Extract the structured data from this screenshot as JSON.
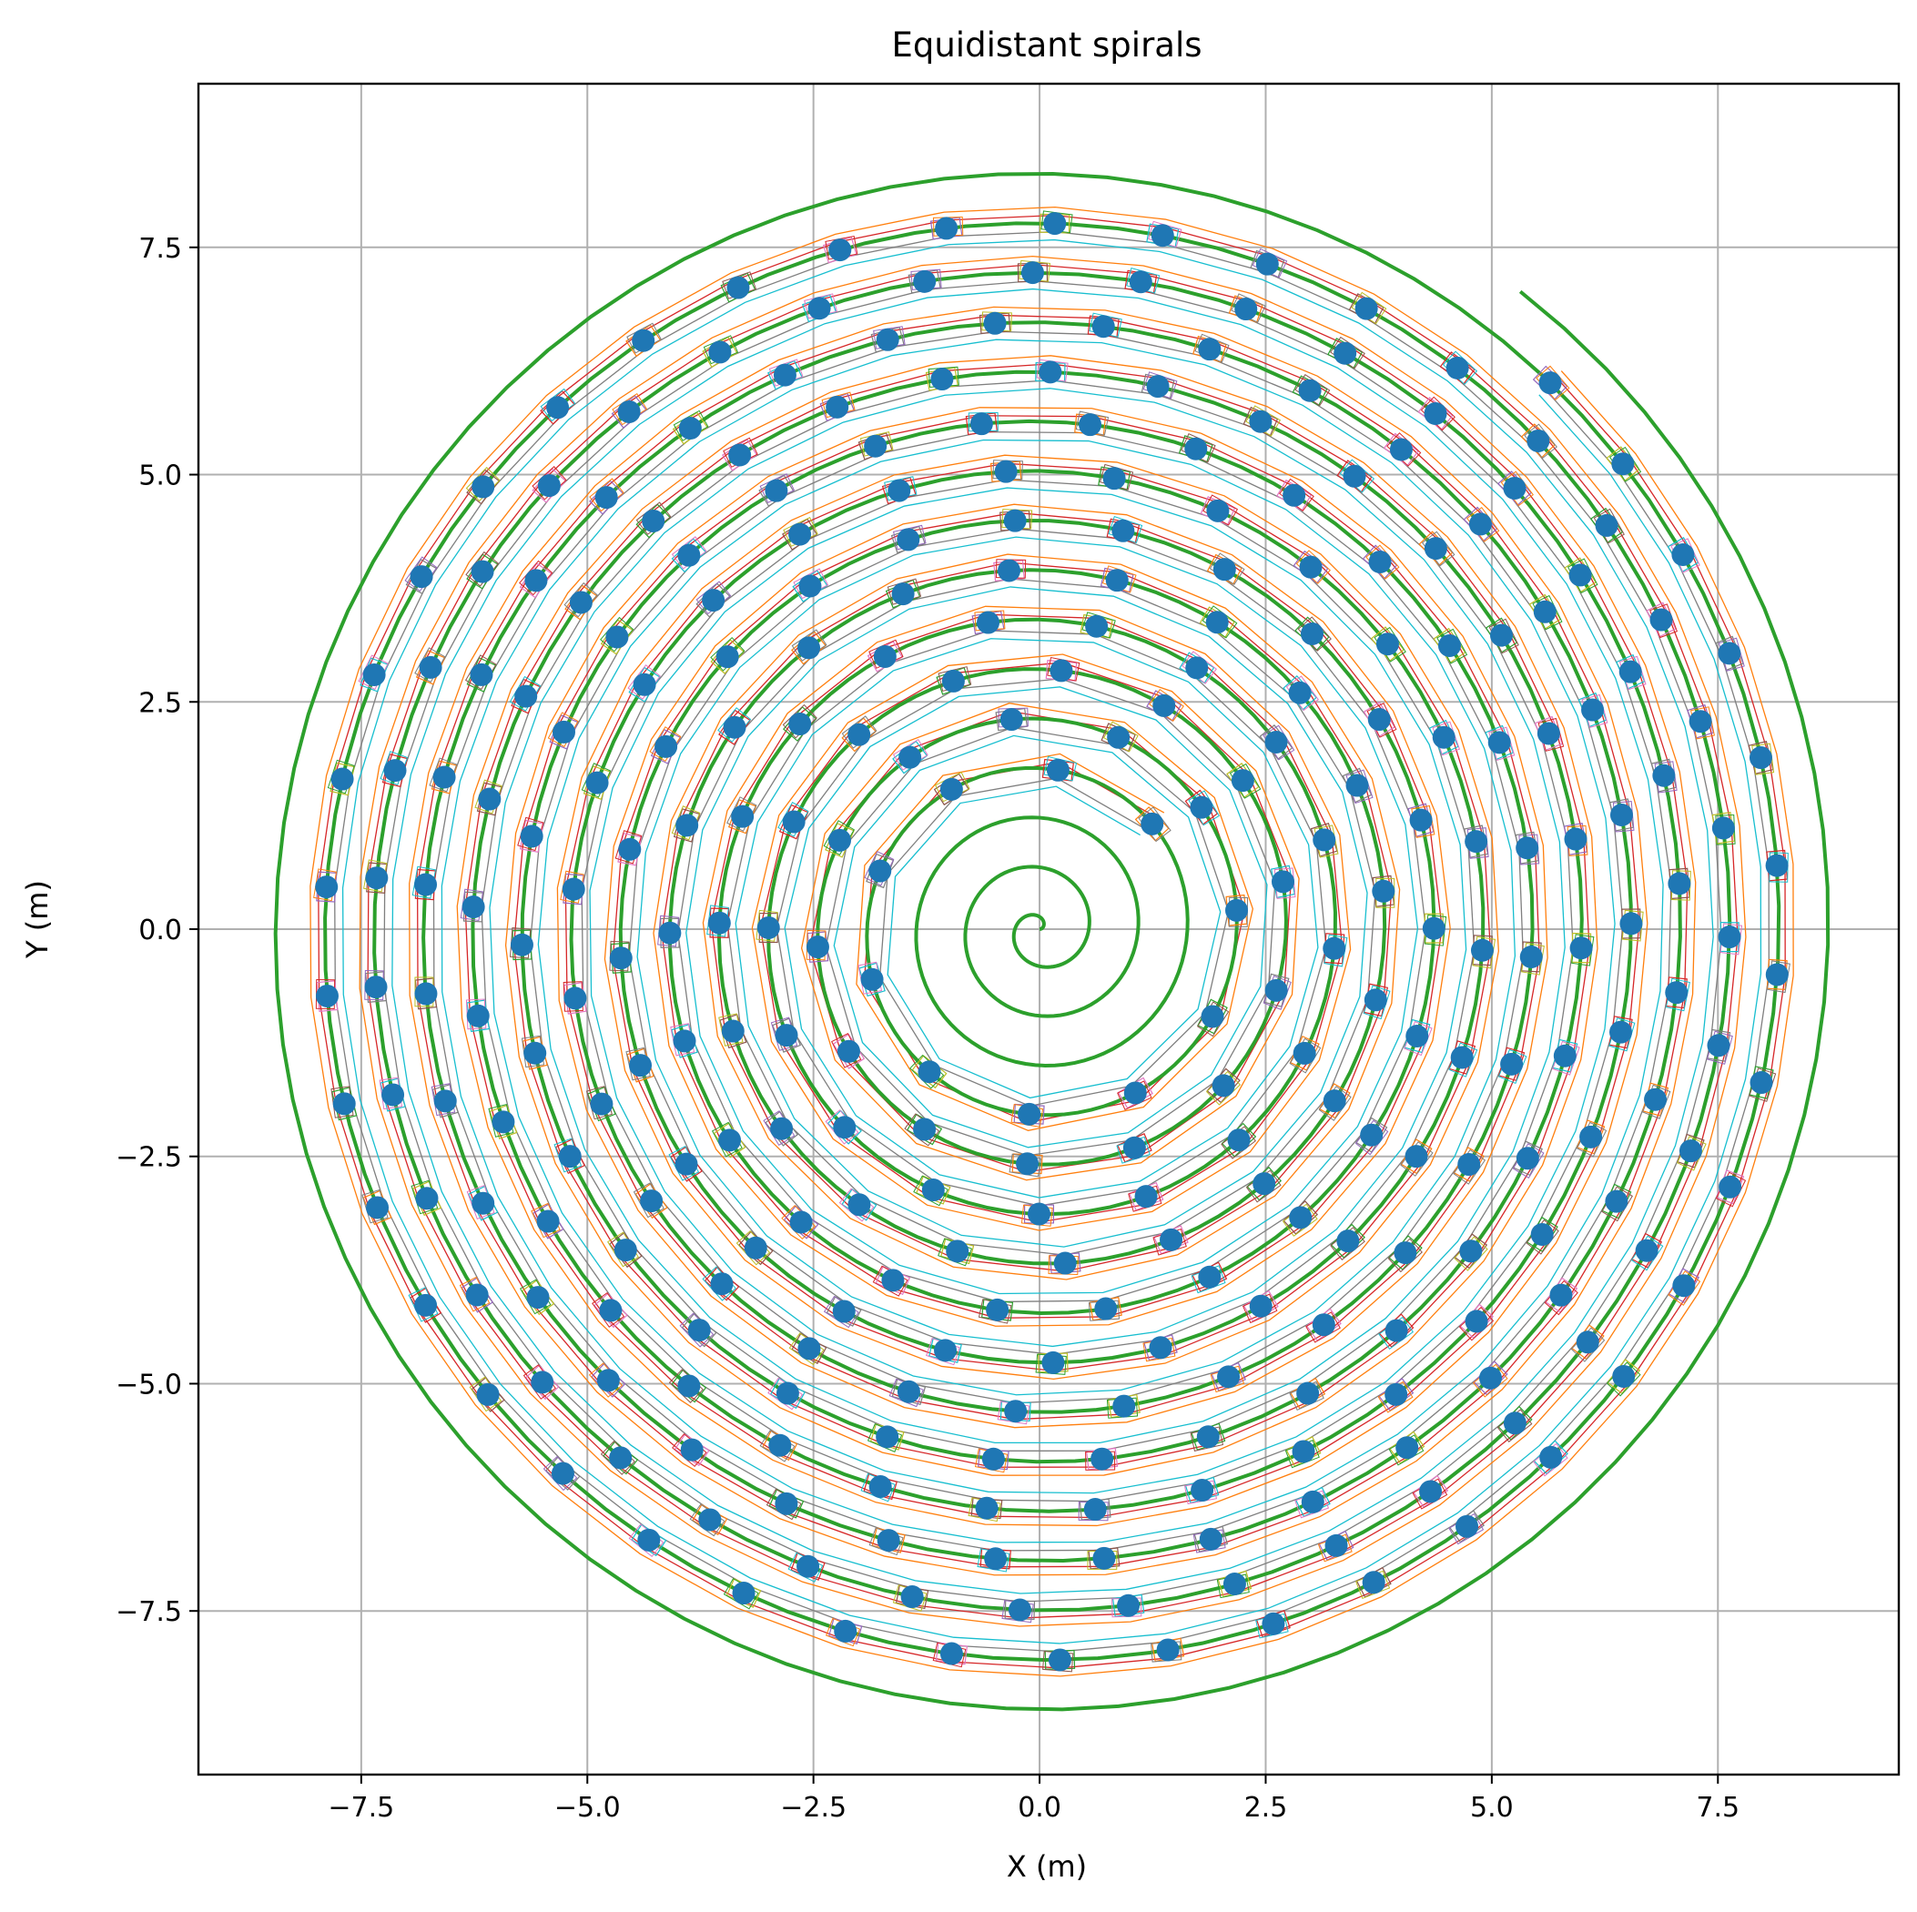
{
  "chart_data": {
    "type": "line",
    "title": "Equidistant spirals",
    "xlabel": "X (m)",
    "ylabel": "Y (m)",
    "xlim": [
      -9.3,
      9.5
    ],
    "ylim": [
      -9.3,
      9.3
    ],
    "xticks": [
      -7.5,
      -5.0,
      -2.5,
      0.0,
      2.5,
      5.0,
      7.5
    ],
    "yticks": [
      -7.5,
      -5.0,
      -2.5,
      0.0,
      2.5,
      5.0,
      7.5
    ],
    "xtick_labels": [
      "−7.5",
      "−5.0",
      "−2.5",
      "0.0",
      "2.5",
      "5.0",
      "7.5"
    ],
    "ytick_labels": [
      "−7.5",
      "−5.0",
      "−2.5",
      "0.0",
      "2.5",
      "5.0",
      "7.5"
    ],
    "grid": true,
    "series": [
      {
        "kind": "archimedean-spiral",
        "color": "#2ca02c",
        "r_start": 0.0,
        "r_end": 8.8,
        "pitch": 0.545,
        "start_angle_deg": 0,
        "direction": "counterclockwise"
      },
      {
        "kind": "sampled-spiral-points",
        "marker_color": "#1f77b4",
        "rect_colors": [
          "#ff7f0e",
          "#d62728",
          "#8c564b",
          "#7f7f7f",
          "#17becf",
          "#bcbd22",
          "#9467bd",
          "#e377c2",
          "#2ca02c"
        ],
        "r_start": 1.7,
        "r_end": 8.25,
        "point_spacing": 1.2
      }
    ],
    "offset_lines": {
      "colors": [
        "#ff7f0e",
        "#d62728",
        "#7f7f7f",
        "#17becf"
      ],
      "offsets": [
        0.18,
        0.09,
        -0.09,
        -0.18
      ]
    }
  }
}
